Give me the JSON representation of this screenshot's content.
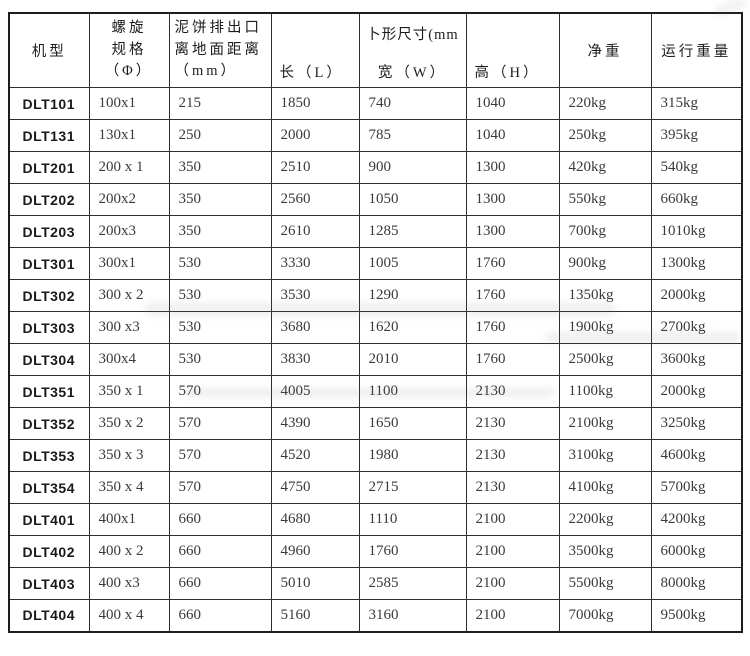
{
  "table": {
    "border_color": "#1e1e1e",
    "grid_color": "#2d2d2d",
    "text_color": "#3a3a3a",
    "model_text_color": "#1a1a1a",
    "columns": [
      "model",
      "spiral-spec",
      "outlet-ground-distance",
      "length",
      "width",
      "height",
      "net-weight",
      "running-weight"
    ],
    "header": {
      "model": "机型",
      "spiral": [
        "螺旋",
        "规格",
        "（Φ）"
      ],
      "outlet": [
        "泥饼排出口",
        "离地面距离",
        "（mm）"
      ],
      "length": "长（L）",
      "dims_top": "卜形尺寸(mm",
      "width": "宽（W）",
      "height": "高（H）",
      "net_weight": "净重",
      "running_weight": "运行重量"
    },
    "rows": [
      [
        "DLT101",
        "100x1",
        "215",
        "1850",
        "740",
        "1040",
        "220kg",
        "315kg"
      ],
      [
        "DLT131",
        "130x1",
        "250",
        "2000",
        "785",
        "1040",
        "250kg",
        "395kg"
      ],
      [
        "DLT201",
        "200 x 1",
        "350",
        "2510",
        "900",
        "1300",
        "420kg",
        "540kg"
      ],
      [
        "DLT202",
        "200x2",
        "350",
        "2560",
        "1050",
        "1300",
        "550kg",
        "660kg"
      ],
      [
        "DLT203",
        "200x3",
        "350",
        "2610",
        "1285",
        "1300",
        "700kg",
        "1010kg"
      ],
      [
        "DLT301",
        "300x1",
        "530",
        "3330",
        "1005",
        "1760",
        "900kg",
        "1300kg"
      ],
      [
        "DLT302",
        "300 x 2",
        "530",
        "3530",
        "1290",
        "1760",
        "1350kg",
        "2000kg"
      ],
      [
        "DLT303",
        "300 x3",
        "530",
        "3680",
        "1620",
        "1760",
        "1900kg",
        "2700kg"
      ],
      [
        "DLT304",
        "300x4",
        "530",
        "3830",
        "2010",
        "1760",
        "2500kg",
        "3600kg"
      ],
      [
        "DLT351",
        "350 x 1",
        "570",
        "4005",
        "1100",
        "2130",
        "1100kg",
        "2000kg"
      ],
      [
        "DLT352",
        "350 x 2",
        "570",
        "4390",
        "1650",
        "2130",
        "2100kg",
        "3250kg"
      ],
      [
        "DLT353",
        "350 x 3",
        "570",
        "4520",
        "1980",
        "2130",
        "3100kg",
        "4600kg"
      ],
      [
        "DLT354",
        "350 x 4",
        "570",
        "4750",
        "2715",
        "2130",
        "4100kg",
        "5700kg"
      ],
      [
        "DLT401",
        "400x1",
        "660",
        "4680",
        "1110",
        "2100",
        "2200kg",
        "4200kg"
      ],
      [
        "DLT402",
        "400 x 2",
        "660",
        "4960",
        "1760",
        "2100",
        "3500kg",
        "6000kg"
      ],
      [
        "DLT403",
        "400 x3",
        "660",
        "5010",
        "2585",
        "2100",
        "5500kg",
        "8000kg"
      ],
      [
        "DLT404",
        "400 x 4",
        "660",
        "5160",
        "3160",
        "2100",
        "7000kg",
        "9500kg"
      ]
    ]
  }
}
